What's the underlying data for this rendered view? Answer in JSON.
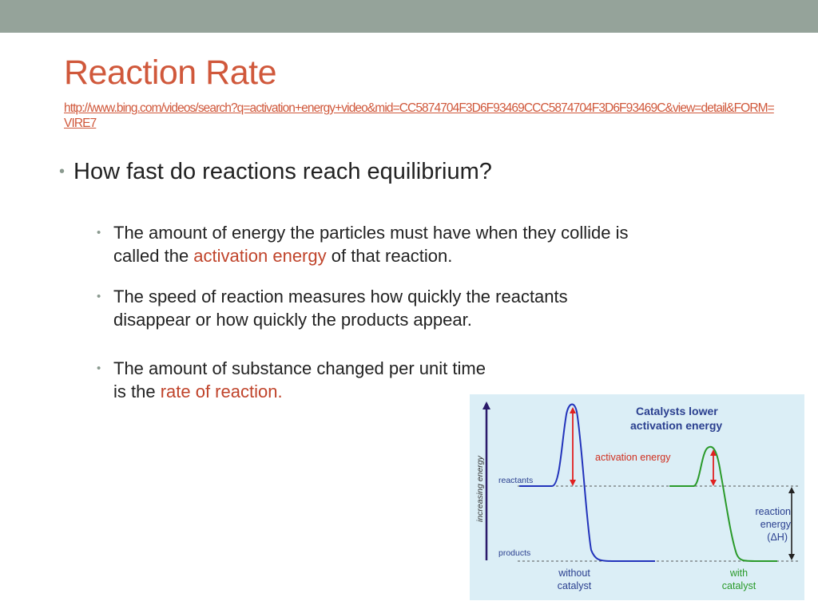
{
  "slide": {
    "title": "Reaction Rate",
    "link": "http://www.bing.com/videos/search?q=activation+energy+video&mid=CC5874704F3D6F93469CCC5874704F3D6F93469C&view=detail&FORM=VIRE7",
    "main_bullet": "How fast do reactions reach equilibrium?",
    "sub_bullets": [
      {
        "line1": "The amount of energy the particles must have when they collide is",
        "before": "called the ",
        "highlight": "activation energy",
        "after": " of that reaction."
      },
      {
        "line1": "The speed of reaction measures how quickly the reactants",
        "line2": "disappear or how quickly the products appear."
      },
      {
        "line1": "The amount of substance changed per unit time",
        "before": "is the ",
        "highlight": "rate of reaction."
      }
    ]
  },
  "figure": {
    "heading_line1": "Catalysts lower",
    "heading_line2": "activation energy",
    "y_axis_label": "increasing energy",
    "reactants_label": "reactants",
    "products_label": "products",
    "activation_energy_label": "activation energy",
    "reaction_energy_line1": "reaction",
    "reaction_energy_line2": "energy",
    "reaction_energy_line3": "(ΔH)",
    "without_line1": "without",
    "without_line2": "catalyst",
    "with_line1": "with",
    "with_line2": "catalyst"
  },
  "colors": {
    "title": "#d0583b",
    "highlight": "#c0442b",
    "topbar": "#95a39a",
    "uncatalysed_curve": "#2233bb",
    "catalysed_curve": "#2a9a2a",
    "arrow": "#e02020",
    "figure_heading": "#2a3f8f"
  }
}
